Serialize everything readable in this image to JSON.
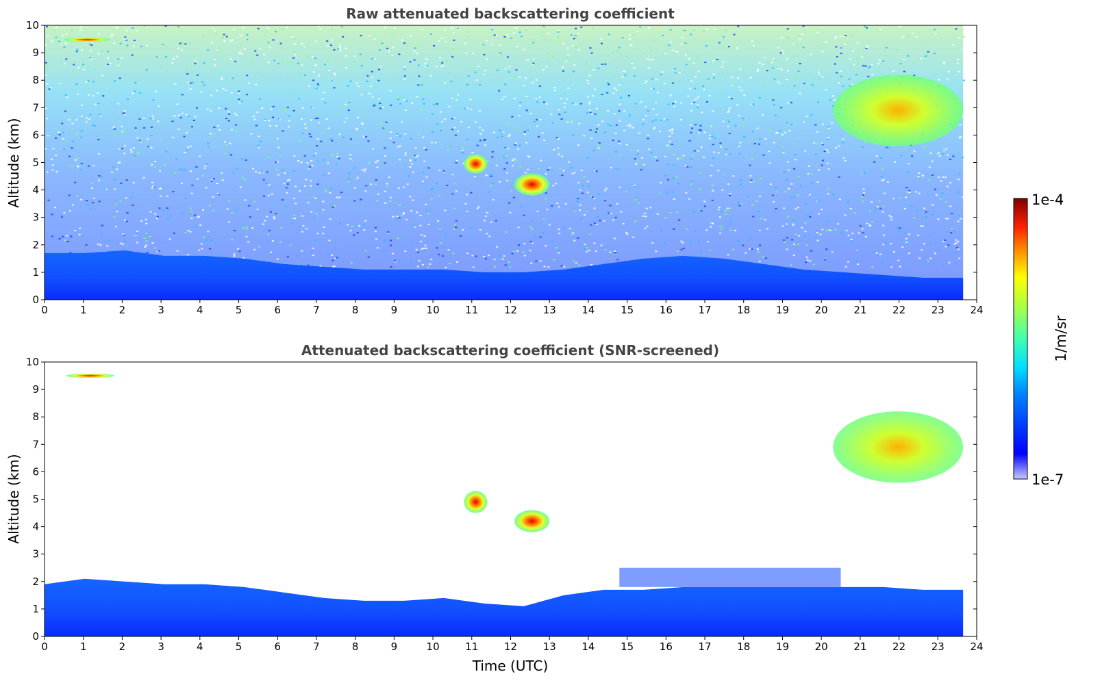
{
  "chart_data": [
    {
      "type": "heatmap",
      "title": "Raw attenuated backscattering coefficient",
      "xlabel": "",
      "ylabel": "Altitude (km)",
      "xlim": [
        0,
        24
      ],
      "ylim": [
        0,
        10
      ],
      "x_ticks": [
        "0",
        "1",
        "2",
        "3",
        "4",
        "5",
        "6",
        "7",
        "8",
        "9",
        "10",
        "11",
        "12",
        "13",
        "14",
        "15",
        "16",
        "17",
        "18",
        "19",
        "20",
        "21",
        "22",
        "23",
        "24"
      ],
      "y_ticks": [
        "0",
        "1",
        "2",
        "3",
        "4",
        "5",
        "6",
        "7",
        "8",
        "9",
        "10"
      ],
      "data_time_range": [
        0,
        23.65
      ],
      "features": [
        {
          "kind": "boundary_layer",
          "t_start": 0,
          "t_end": 23.65,
          "top_km": [
            1.7,
            1.7,
            1.8,
            1.6,
            1.6,
            1.5,
            1.3,
            1.2,
            1.1,
            1.1,
            1.1,
            1.0,
            1.0,
            1.1,
            1.3,
            1.5,
            1.6,
            1.5,
            1.3,
            1.1,
            1.0,
            0.9,
            0.8,
            0.8
          ],
          "level": "1e-6"
        },
        {
          "kind": "cloud",
          "t_start": 0.5,
          "t_end": 1.7,
          "alt_km": [
            9.4,
            9.55
          ],
          "level": "3e-5"
        },
        {
          "kind": "cloud",
          "t_start": 10.8,
          "t_end": 11.4,
          "alt_km": [
            4.6,
            5.3
          ],
          "level": "5e-5"
        },
        {
          "kind": "cloud",
          "t_start": 12.1,
          "t_end": 13.0,
          "alt_km": [
            3.8,
            4.6
          ],
          "level": "6e-5"
        },
        {
          "kind": "cirrus",
          "t_start": 20.3,
          "t_end": 23.65,
          "alt_km": [
            5.6,
            8.2
          ],
          "level": "2e-5"
        }
      ]
    },
    {
      "type": "heatmap",
      "title": "Attenuated backscattering coefficient (SNR-screened)",
      "xlabel": "Time (UTC)",
      "ylabel": "Altitude (km)",
      "xlim": [
        0,
        24
      ],
      "ylim": [
        0,
        10
      ],
      "x_ticks": [
        "0",
        "1",
        "2",
        "3",
        "4",
        "5",
        "6",
        "7",
        "8",
        "9",
        "10",
        "11",
        "12",
        "13",
        "14",
        "15",
        "16",
        "17",
        "18",
        "19",
        "20",
        "21",
        "22",
        "23",
        "24"
      ],
      "y_ticks": [
        "0",
        "1",
        "2",
        "3",
        "4",
        "5",
        "6",
        "7",
        "8",
        "9",
        "10"
      ],
      "data_time_range": [
        0,
        23.65
      ],
      "features": [
        {
          "kind": "boundary_layer",
          "t_start": 0,
          "t_end": 23.65,
          "top_km": [
            1.9,
            2.1,
            2.0,
            1.9,
            1.9,
            1.8,
            1.6,
            1.4,
            1.3,
            1.3,
            1.4,
            1.2,
            1.1,
            1.5,
            1.7,
            1.7,
            1.8,
            1.8,
            1.8,
            1.8,
            1.8,
            1.8,
            1.7,
            1.7
          ],
          "level": "1e-6"
        },
        {
          "kind": "aerosol_layer",
          "t_start": 14.8,
          "t_end": 20.5,
          "alt_km": [
            1.8,
            2.5
          ],
          "level": "3e-7"
        },
        {
          "kind": "cloud",
          "t_start": 0.55,
          "t_end": 1.8,
          "alt_km": [
            9.45,
            9.55
          ],
          "level": "3e-5"
        },
        {
          "kind": "cloud",
          "t_start": 10.8,
          "t_end": 11.4,
          "alt_km": [
            4.5,
            5.3
          ],
          "level": "5e-5"
        },
        {
          "kind": "cloud",
          "t_start": 12.1,
          "t_end": 13.0,
          "alt_km": [
            3.8,
            4.6
          ],
          "level": "6e-5"
        },
        {
          "kind": "cirrus",
          "t_start": 20.3,
          "t_end": 23.65,
          "alt_km": [
            5.6,
            8.2
          ],
          "level": "2e-5"
        }
      ]
    }
  ],
  "colorbar": {
    "colormap": "jet",
    "vmin_label": "1e-7",
    "vmax_label": "1e-4",
    "label": "1/m/sr"
  }
}
